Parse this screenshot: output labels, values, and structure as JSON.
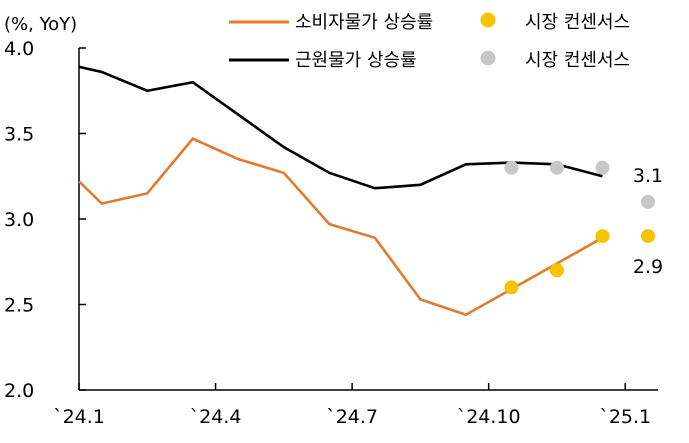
{
  "chart_data": {
    "type": "line",
    "unit_label": "(%, YoY)",
    "y_ticks": [
      "4.0",
      "3.5",
      "3.0",
      "2.5",
      "2.0"
    ],
    "ylim": [
      2.0,
      4.0
    ],
    "x_tick_labels": [
      "`24.1",
      "`24.4",
      "`24.7",
      "`24.10",
      "`25.1"
    ],
    "x_ticks": [
      0,
      3,
      6,
      9,
      12
    ],
    "xlim": [
      0,
      12.5
    ],
    "grid": false,
    "legend_position": "top",
    "series": [
      {
        "name": "소비자물가 상승률",
        "color": "#E07B2F",
        "x": [
          0,
          0.5,
          1.5,
          2.5,
          3.5,
          4.5,
          5.5,
          6.5,
          7.5,
          8.5,
          9.5,
          10.5,
          11.5
        ],
        "values": [
          3.22,
          3.09,
          3.15,
          3.47,
          3.35,
          3.27,
          2.97,
          2.89,
          2.53,
          2.44,
          2.59,
          2.74,
          2.89
        ]
      },
      {
        "name": "근원물가 상승률",
        "color": "#000000",
        "x": [
          0,
          0.5,
          1.5,
          2.5,
          3.5,
          4.5,
          5.5,
          6.5,
          7.5,
          8.5,
          9.5,
          10.5,
          11.5
        ],
        "values": [
          3.89,
          3.86,
          3.75,
          3.8,
          3.61,
          3.42,
          3.27,
          3.18,
          3.2,
          3.32,
          3.33,
          3.32,
          3.25
        ]
      }
    ],
    "consensus_series": [
      {
        "name": "시장 컨센서스",
        "color": "#F5C300",
        "x": [
          9.5,
          10.5,
          11.5,
          12.5
        ],
        "values": [
          2.6,
          2.7,
          2.9,
          2.9
        ]
      },
      {
        "name": "시장 컨센서스",
        "color": "#C8C8C8",
        "x": [
          9.5,
          10.5,
          11.5,
          12.5
        ],
        "values": [
          3.3,
          3.3,
          3.3,
          3.1
        ]
      }
    ],
    "annotations": [
      {
        "text": "3.1",
        "x": 12.5,
        "value": 3.1,
        "anchor": "above"
      },
      {
        "text": "2.9",
        "x": 12.5,
        "value": 2.9,
        "anchor": "below"
      }
    ]
  }
}
